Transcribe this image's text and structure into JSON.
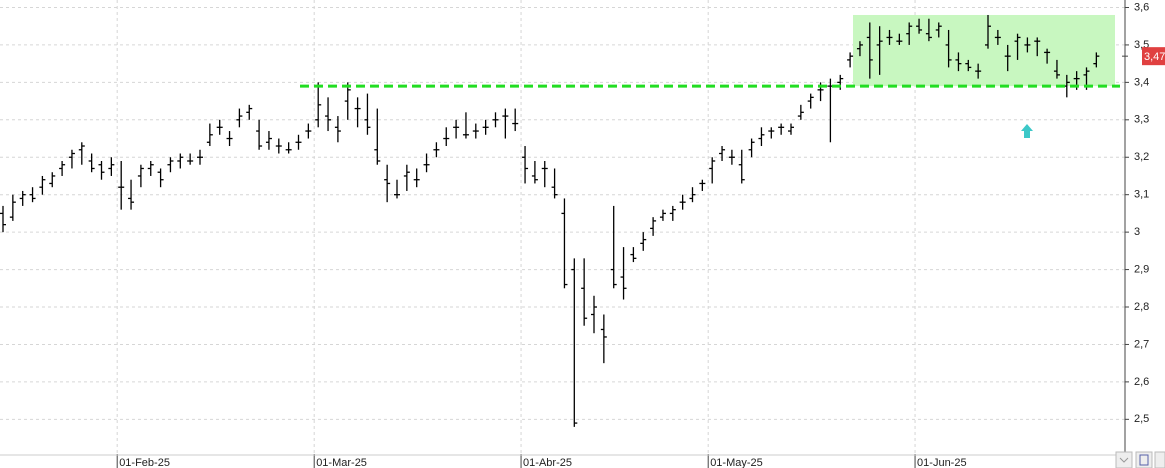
{
  "chart_data": {
    "type": "ohlc",
    "color": "#000000",
    "categories": [
      null,
      null,
      null,
      null,
      null,
      null,
      null,
      null,
      null,
      null,
      null,
      null,
      "01-Feb-25",
      null,
      null,
      null,
      null,
      null,
      null,
      null,
      null,
      null,
      null,
      null,
      null,
      null,
      null,
      null,
      null,
      null,
      null,
      null,
      "01-Mar-25",
      null,
      null,
      null,
      null,
      null,
      null,
      null,
      null,
      null,
      null,
      null,
      null,
      null,
      null,
      null,
      null,
      null,
      null,
      null,
      null,
      "01-Abr-25",
      null,
      null,
      null,
      null,
      null,
      null,
      null,
      null,
      null,
      null,
      null,
      null,
      null,
      null,
      null,
      null,
      null,
      null,
      "01-May-25",
      null,
      null,
      null,
      null,
      null,
      null,
      null,
      null,
      null,
      null,
      null,
      null,
      null,
      null,
      null,
      null,
      null,
      null,
      null,
      null,
      "01-Jun-25",
      null,
      null,
      null,
      null,
      null,
      null,
      null,
      null,
      null,
      null,
      null,
      null,
      null,
      null,
      null,
      null,
      null,
      null
    ],
    "ohlc": [
      [
        3.05,
        3.07,
        3.0,
        3.02
      ],
      [
        3.04,
        3.1,
        3.03,
        3.08
      ],
      [
        3.09,
        3.11,
        3.07,
        3.1
      ],
      [
        3.1,
        3.12,
        3.08,
        3.09
      ],
      [
        3.12,
        3.15,
        3.1,
        3.14
      ],
      [
        3.13,
        3.16,
        3.12,
        3.15
      ],
      [
        3.17,
        3.19,
        3.15,
        3.18
      ],
      [
        3.2,
        3.22,
        3.17,
        3.21
      ],
      [
        3.22,
        3.24,
        3.18,
        3.23
      ],
      [
        3.19,
        3.21,
        3.16,
        3.17
      ],
      [
        3.18,
        3.19,
        3.14,
        3.16
      ],
      [
        3.17,
        3.2,
        3.15,
        3.18
      ],
      [
        3.12,
        3.19,
        3.06,
        3.12
      ],
      [
        3.09,
        3.14,
        3.06,
        3.08
      ],
      [
        3.15,
        3.18,
        3.12,
        3.17
      ],
      [
        3.17,
        3.19,
        3.15,
        3.18
      ],
      [
        3.16,
        3.17,
        3.12,
        3.14
      ],
      [
        3.18,
        3.2,
        3.16,
        3.19
      ],
      [
        3.19,
        3.21,
        3.17,
        3.2
      ],
      [
        3.19,
        3.21,
        3.18,
        3.19
      ],
      [
        3.2,
        3.22,
        3.18,
        3.2
      ],
      [
        3.24,
        3.29,
        3.23,
        3.26
      ],
      [
        3.28,
        3.3,
        3.26,
        3.28
      ],
      [
        3.25,
        3.27,
        3.23,
        3.25
      ],
      [
        3.3,
        3.33,
        3.28,
        3.31
      ],
      [
        3.32,
        3.34,
        3.3,
        3.33
      ],
      [
        3.27,
        3.3,
        3.22,
        3.23
      ],
      [
        3.24,
        3.27,
        3.22,
        3.25
      ],
      [
        3.23,
        3.25,
        3.21,
        3.23
      ],
      [
        3.22,
        3.24,
        3.21,
        3.22
      ],
      [
        3.24,
        3.26,
        3.22,
        3.24
      ],
      [
        3.27,
        3.29,
        3.25,
        3.27
      ],
      [
        3.3,
        3.4,
        3.28,
        3.34
      ],
      [
        3.31,
        3.36,
        3.27,
        3.3
      ],
      [
        3.28,
        3.31,
        3.24,
        3.27
      ],
      [
        3.35,
        3.4,
        3.3,
        3.38
      ],
      [
        3.33,
        3.36,
        3.28,
        3.33
      ],
      [
        3.3,
        3.37,
        3.26,
        3.28
      ],
      [
        3.22,
        3.33,
        3.18,
        3.19
      ],
      [
        3.14,
        3.18,
        3.08,
        3.13
      ],
      [
        3.1,
        3.14,
        3.09,
        3.1
      ],
      [
        3.15,
        3.18,
        3.11,
        3.16
      ],
      [
        3.14,
        3.17,
        3.12,
        3.14
      ],
      [
        3.18,
        3.21,
        3.16,
        3.18
      ],
      [
        3.22,
        3.24,
        3.2,
        3.22
      ],
      [
        3.25,
        3.28,
        3.23,
        3.25
      ],
      [
        3.28,
        3.3,
        3.25,
        3.28
      ],
      [
        3.26,
        3.32,
        3.25,
        3.26
      ],
      [
        3.27,
        3.29,
        3.25,
        3.27
      ],
      [
        3.28,
        3.3,
        3.26,
        3.28
      ],
      [
        3.3,
        3.32,
        3.28,
        3.3
      ],
      [
        3.31,
        3.33,
        3.25,
        3.31
      ],
      [
        3.29,
        3.33,
        3.27,
        3.29
      ],
      [
        3.2,
        3.23,
        3.13,
        3.17
      ],
      [
        3.15,
        3.19,
        3.13,
        3.14
      ],
      [
        3.17,
        3.19,
        3.12,
        3.17
      ],
      [
        3.12,
        3.17,
        3.09,
        3.1
      ],
      [
        3.05,
        3.09,
        2.85,
        2.86
      ],
      [
        2.9,
        2.93,
        2.48,
        2.49
      ],
      [
        2.85,
        2.93,
        2.75,
        2.77
      ],
      [
        2.78,
        2.83,
        2.73,
        2.8
      ],
      [
        2.74,
        2.78,
        2.65,
        2.72
      ],
      [
        2.9,
        3.07,
        2.85,
        2.86
      ],
      [
        2.88,
        2.96,
        2.82,
        2.85
      ],
      [
        2.94,
        2.96,
        2.92,
        2.93
      ],
      [
        2.97,
        3.0,
        2.95,
        2.98
      ],
      [
        3.01,
        3.04,
        2.99,
        3.03
      ],
      [
        3.04,
        3.06,
        3.03,
        3.05
      ],
      [
        3.05,
        3.07,
        3.03,
        3.06
      ],
      [
        3.08,
        3.1,
        3.06,
        3.08
      ],
      [
        3.09,
        3.12,
        3.08,
        3.1
      ],
      [
        3.13,
        3.14,
        3.11,
        3.13
      ],
      [
        3.17,
        3.2,
        3.13,
        3.19
      ],
      [
        3.21,
        3.23,
        3.19,
        3.22
      ],
      [
        3.2,
        3.22,
        3.18,
        3.2
      ],
      [
        3.18,
        3.22,
        3.13,
        3.14
      ],
      [
        3.22,
        3.25,
        3.2,
        3.24
      ],
      [
        3.25,
        3.28,
        3.23,
        3.26
      ],
      [
        3.27,
        3.28,
        3.25,
        3.27
      ],
      [
        3.28,
        3.29,
        3.26,
        3.28
      ],
      [
        3.27,
        3.29,
        3.26,
        3.28
      ],
      [
        3.31,
        3.34,
        3.3,
        3.32
      ],
      [
        3.35,
        3.37,
        3.33,
        3.36
      ],
      [
        3.38,
        3.4,
        3.35,
        3.38
      ],
      [
        3.39,
        3.41,
        3.24,
        3.39
      ],
      [
        3.4,
        3.42,
        3.38,
        3.41
      ],
      [
        3.46,
        3.48,
        3.44,
        3.47
      ],
      [
        3.49,
        3.51,
        3.47,
        3.5
      ],
      [
        3.52,
        3.56,
        3.41,
        3.46
      ],
      [
        3.5,
        3.55,
        3.42,
        3.51
      ],
      [
        3.52,
        3.54,
        3.5,
        3.52
      ],
      [
        3.51,
        3.53,
        3.5,
        3.51
      ],
      [
        3.53,
        3.56,
        3.5,
        3.55
      ],
      [
        3.55,
        3.57,
        3.53,
        3.54
      ],
      [
        3.53,
        3.57,
        3.51,
        3.52
      ],
      [
        3.54,
        3.56,
        3.52,
        3.55
      ],
      [
        3.5,
        3.54,
        3.44,
        3.46
      ],
      [
        3.46,
        3.48,
        3.43,
        3.45
      ],
      [
        3.45,
        3.46,
        3.43,
        3.44
      ],
      [
        3.43,
        3.45,
        3.41,
        3.43
      ],
      [
        3.5,
        3.58,
        3.49,
        3.55
      ],
      [
        3.52,
        3.54,
        3.5,
        3.52
      ],
      [
        3.47,
        3.5,
        3.43,
        3.47
      ],
      [
        3.51,
        3.53,
        3.46,
        3.52
      ],
      [
        3.5,
        3.52,
        3.48,
        3.5
      ],
      [
        3.51,
        3.52,
        3.47,
        3.51
      ],
      [
        3.48,
        3.49,
        3.45,
        3.48
      ],
      [
        3.43,
        3.46,
        3.41,
        3.42
      ],
      [
        3.39,
        3.42,
        3.36,
        3.4
      ],
      [
        3.41,
        3.43,
        3.38,
        3.41
      ],
      [
        3.42,
        3.44,
        3.38,
        3.43
      ],
      [
        3.45,
        3.48,
        3.44,
        3.47
      ]
    ],
    "ylim": [
      2.37,
      3.62
    ],
    "yticks": [
      {
        "value": 2.5,
        "label": "2,5"
      },
      {
        "value": 2.6,
        "label": "2,6"
      },
      {
        "value": 2.7,
        "label": "2,7"
      },
      {
        "value": 2.8,
        "label": "2,8"
      },
      {
        "value": 2.9,
        "label": "2,9"
      },
      3,
      {
        "value": 3.1,
        "label": "3,1"
      },
      {
        "value": 3.2,
        "label": "3,2"
      },
      {
        "value": 3.3,
        "label": "3,3"
      },
      {
        "value": 3.4,
        "label": "3,4"
      },
      {
        "value": 3.5,
        "label": "3,5"
      },
      {
        "value": 3.6,
        "label": "3,6"
      }
    ],
    "grid": true,
    "hline": {
      "value": 3.39,
      "color": "#22dd22"
    },
    "zone": {
      "low": 3.39,
      "high": 3.58,
      "color": "#c8f7c0"
    },
    "last_price": {
      "value": 3.47,
      "label": "3,47",
      "color": "#e04040"
    }
  }
}
